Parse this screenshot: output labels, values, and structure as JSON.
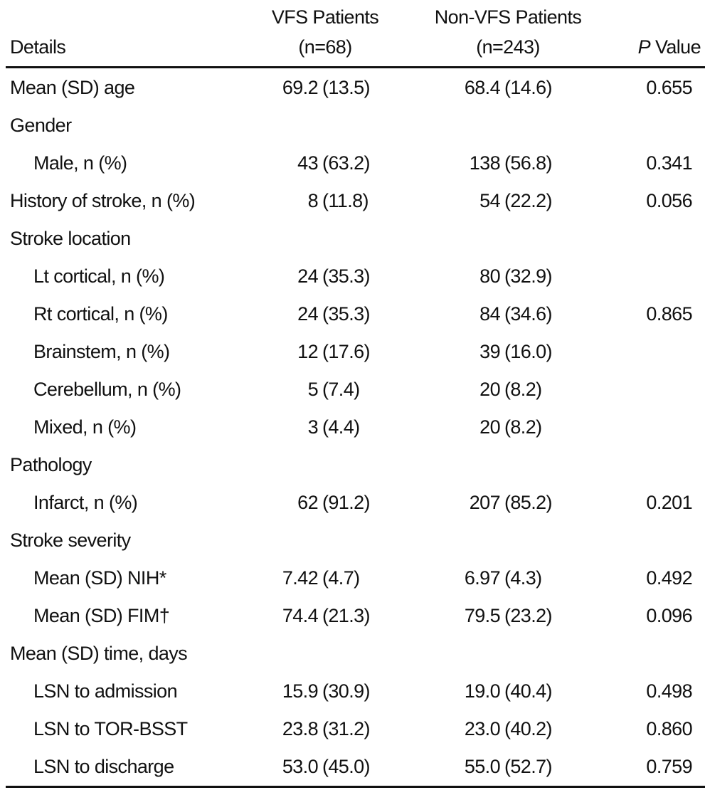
{
  "header": {
    "details": "Details",
    "vfs": {
      "title": "VFS Patients",
      "n": "(n=68)"
    },
    "non_vfs": {
      "title": "Non-VFS Patients",
      "n": "(n=243)"
    },
    "p_value": {
      "symbol": "P",
      "label": "Value"
    }
  },
  "rows": [
    {
      "label": "Mean (SD) age",
      "vfs": [
        "69.2",
        "(13.5)"
      ],
      "non_vfs": [
        "68.4",
        "(14.6)"
      ],
      "p": "0.655"
    },
    {
      "label": "Gender"
    },
    {
      "label": "Male, n (%)",
      "indent": true,
      "vfs": [
        "43",
        "(63.2)"
      ],
      "non_vfs": [
        "138",
        "(56.8)"
      ],
      "p": "0.341"
    },
    {
      "label": "History of stroke, n (%)",
      "vfs": [
        "8",
        "(11.8)"
      ],
      "non_vfs": [
        "54",
        "(22.2)"
      ],
      "p": "0.056"
    },
    {
      "label": "Stroke location"
    },
    {
      "label": "Lt cortical, n (%)",
      "indent": true,
      "vfs": [
        "24",
        "(35.3)"
      ],
      "non_vfs": [
        "80",
        "(32.9)"
      ]
    },
    {
      "label": "Rt cortical, n (%)",
      "indent": true,
      "vfs": [
        "24",
        "(35.3)"
      ],
      "non_vfs": [
        "84",
        "(34.6)"
      ],
      "p": "0.865"
    },
    {
      "label": "Brainstem, n (%)",
      "indent": true,
      "vfs": [
        "12",
        "(17.6)"
      ],
      "non_vfs": [
        "39",
        "(16.0)"
      ]
    },
    {
      "label": "Cerebellum, n (%)",
      "indent": true,
      "vfs": [
        "5",
        "(7.4)"
      ],
      "non_vfs": [
        "20",
        "(8.2)"
      ]
    },
    {
      "label": "Mixed, n (%)",
      "indent": true,
      "vfs": [
        "3",
        "(4.4)"
      ],
      "non_vfs": [
        "20",
        "(8.2)"
      ]
    },
    {
      "label": "Pathology"
    },
    {
      "label": "Infarct, n (%)",
      "indent": true,
      "vfs": [
        "62",
        "(91.2)"
      ],
      "non_vfs": [
        "207",
        "(85.2)"
      ],
      "p": "0.201"
    },
    {
      "label": "Stroke severity"
    },
    {
      "label": "Mean (SD) NIH*",
      "indent": true,
      "vfs": [
        "7.42",
        "(4.7)"
      ],
      "non_vfs": [
        "6.97",
        "(4.3)"
      ],
      "p": "0.492"
    },
    {
      "label": "Mean (SD) FIM†",
      "indent": true,
      "vfs": [
        "74.4",
        "(21.3)"
      ],
      "non_vfs": [
        "79.5",
        "(23.2)"
      ],
      "p": "0.096"
    },
    {
      "label": "Mean (SD) time, days"
    },
    {
      "label": "LSN to admission",
      "indent": true,
      "vfs": [
        "15.9",
        "(30.9)"
      ],
      "non_vfs": [
        "19.0",
        "(40.4)"
      ],
      "p": "0.498"
    },
    {
      "label": "LSN to TOR-BSST",
      "indent": true,
      "vfs": [
        "23.8",
        "(31.2)"
      ],
      "non_vfs": [
        "23.0",
        "(40.2)"
      ],
      "p": "0.860"
    },
    {
      "label": "LSN to discharge",
      "indent": true,
      "vfs": [
        "53.0",
        "(45.0)"
      ],
      "non_vfs": [
        "55.0",
        "(52.7)"
      ],
      "p": "0.759"
    }
  ]
}
